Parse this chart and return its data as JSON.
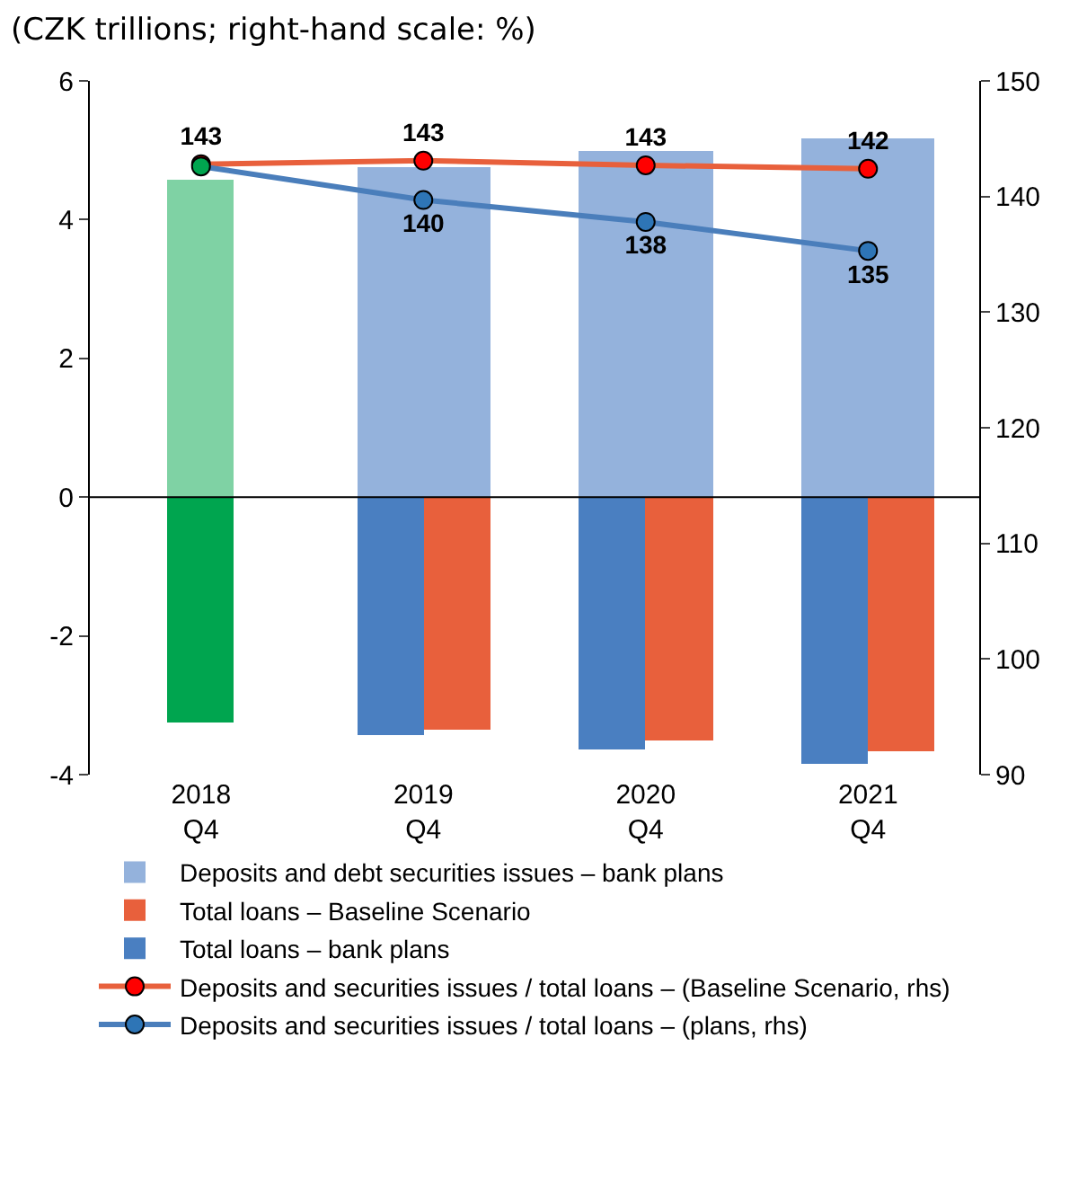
{
  "chart_data": {
    "type": "bar",
    "subtitle": "(CZK trillions; right-hand scale: %)",
    "categories": [
      "2018 Q4",
      "2019 Q4",
      "2020 Q4",
      "2021 Q4"
    ],
    "series": [
      {
        "name": "Deposits and debt securities issues – bank plans",
        "type": "bar",
        "color": "#94b2dc",
        "colors": [
          "#7fd2a4",
          "#94b2dc",
          "#94b2dc",
          "#94b2dc"
        ],
        "values": [
          4.57,
          4.76,
          4.98,
          5.18
        ]
      },
      {
        "name": "Total loans – Baseline Scenario",
        "type": "bar",
        "color": "#e8603c",
        "values": [
          null,
          -3.36,
          -3.52,
          -3.66
        ]
      },
      {
        "name": "Total loans – bank plans",
        "color": "#4a7fc1",
        "colors": [
          "#00a54f",
          "#4a7fc1",
          "#4a7fc1",
          "#4a7fc1"
        ],
        "values": [
          -3.24,
          -3.44,
          -3.64,
          -3.85
        ]
      },
      {
        "name": "Deposits and securities issues / total loans – (Baseline Scenario, rhs)",
        "type": "line",
        "axis": "y2",
        "color": "#e8603c",
        "colors": [
          "#ff0000",
          "#ff0000",
          "#ff0000",
          "#ff0000"
        ],
        "values": [
          142.8,
          143.1,
          142.7,
          142.4
        ],
        "value_labels": [
          "143",
          "143",
          "143",
          "142"
        ]
      },
      {
        "name": "Deposits and securities issues / total loans – (plans, rhs)",
        "type": "line",
        "axis": "y2",
        "color": "#4a7ebb",
        "colors": [
          "#00a54f",
          "#2e75b6",
          "#2e75b6",
          "#2e75b6"
        ],
        "values": [
          142.6,
          139.7,
          137.8,
          135.3
        ],
        "value_labels": [
          null,
          "140",
          "138",
          "135"
        ]
      }
    ],
    "ylim": [
      -4,
      6
    ],
    "yticks": [
      -4,
      -2,
      0,
      2,
      4,
      6
    ],
    "y2lim": [
      90,
      150
    ],
    "y2ticks": [
      90,
      100,
      110,
      120,
      130,
      140,
      150
    ],
    "ref_lines": [
      {
        "axis": "y",
        "value": 0,
        "color": "#000000"
      }
    ],
    "grid": false,
    "legend": "bottom",
    "marker": "circle"
  }
}
